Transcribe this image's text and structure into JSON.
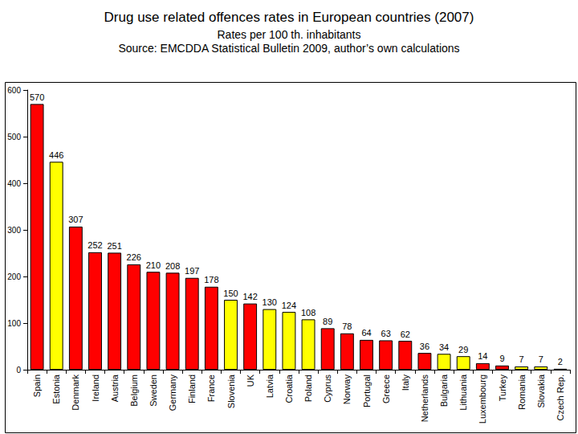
{
  "chart_data": {
    "type": "bar",
    "title": "Drug use related offences rates in European countries (2007)",
    "subtitle": [
      "Rates per 100 th. inhabitants",
      "Source: EMCDDA Statistical Bulletin 2009, author’s own calculations"
    ],
    "categories": [
      "Spain",
      "Estonia",
      "Denmark",
      "Ireland",
      "Austria",
      "Belgium",
      "Sweden",
      "Germany",
      "Finland",
      "France",
      "Slovenia",
      "UK",
      "Latvia",
      "Croatia",
      "Poland",
      "Cyprus",
      "Norway",
      "Portugal",
      "Greece",
      "Italy",
      "Netherlands",
      "Bulgaria",
      "Lithuania",
      "Luxembourg",
      "Turkey",
      "Romania",
      "Slovakia",
      "Czech Rep."
    ],
    "values": [
      570,
      446,
      307,
      252,
      251,
      226,
      210,
      208,
      197,
      178,
      150,
      142,
      130,
      124,
      108,
      89,
      78,
      64,
      63,
      62,
      36,
      34,
      29,
      14,
      9,
      7,
      7,
      2
    ],
    "colors": [
      "#ff0000",
      "#ffff00",
      "#ff0000",
      "#ff0000",
      "#ff0000",
      "#ff0000",
      "#ff0000",
      "#ff0000",
      "#ff0000",
      "#ff0000",
      "#ffff00",
      "#ff0000",
      "#ffff00",
      "#ffff00",
      "#ffff00",
      "#ff0000",
      "#ff0000",
      "#ff0000",
      "#ff0000",
      "#ff0000",
      "#ff0000",
      "#ffff00",
      "#ffff00",
      "#ff0000",
      "#ff0000",
      "#ffff00",
      "#ffff00",
      "#ff0000"
    ],
    "ylim": [
      0,
      600
    ],
    "yticks": [
      0,
      100,
      200,
      300,
      400,
      500,
      600
    ],
    "grid": false,
    "data_labels": true
  }
}
